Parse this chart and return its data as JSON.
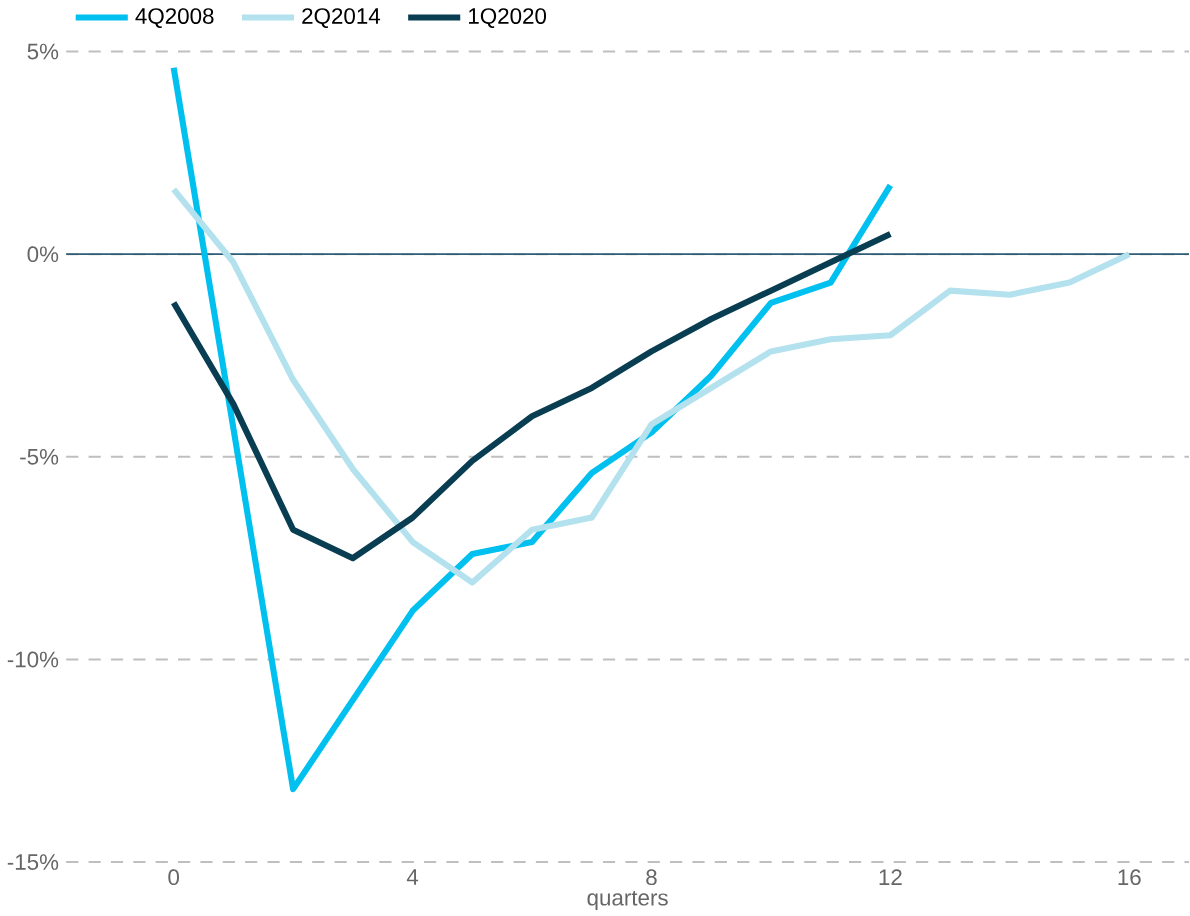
{
  "chart_data": {
    "type": "line",
    "xlabel": "quarters",
    "xlim": [
      -1.8,
      17
    ],
    "xticks": [
      0,
      4,
      8,
      12,
      16
    ],
    "ylim": [
      -15,
      5
    ],
    "yticks": [
      {
        "value": 5,
        "label": "5%"
      },
      {
        "value": 0,
        "label": "0%"
      },
      {
        "value": -5,
        "label": "-5%"
      },
      {
        "value": -10,
        "label": "-10%"
      },
      {
        "value": -15,
        "label": "-15%"
      }
    ],
    "grid": "y",
    "legend": "top left",
    "line_style": "solid",
    "marker": "none",
    "ref_lines": [
      {
        "axis": "y",
        "value": 0,
        "color": "#2e5e75"
      }
    ],
    "series": [
      {
        "name": "4Q2008",
        "color": "#00c0ef",
        "x": [
          0,
          2,
          3,
          4,
          5,
          6,
          7,
          8,
          9,
          10,
          11,
          12
        ],
        "values": [
          4.6,
          -13.2,
          -11.0,
          -8.8,
          -7.4,
          -7.1,
          -5.4,
          -4.4,
          -3.0,
          -1.2,
          -0.7,
          1.7
        ]
      },
      {
        "name": "2Q2014",
        "color": "#b3e2ee",
        "x": [
          0,
          1,
          2,
          3,
          4,
          5,
          6,
          7,
          8,
          9,
          10,
          11,
          12,
          13,
          14,
          15,
          16
        ],
        "values": [
          1.6,
          -0.2,
          -3.1,
          -5.3,
          -7.1,
          -8.1,
          -6.8,
          -6.5,
          -4.2,
          -3.3,
          -2.4,
          -2.1,
          -2.0,
          -0.9,
          -1.0,
          -0.7,
          0
        ]
      },
      {
        "name": "1Q2020",
        "color": "#083d52",
        "x": [
          0,
          1,
          2,
          3,
          4,
          5,
          6,
          7,
          8,
          9,
          10,
          11,
          12
        ],
        "values": [
          -1.2,
          -3.7,
          -6.8,
          -7.5,
          -6.5,
          -5.1,
          -4.0,
          -3.3,
          -2.4,
          -1.6,
          -0.9,
          -0.2,
          0.5
        ]
      }
    ]
  }
}
